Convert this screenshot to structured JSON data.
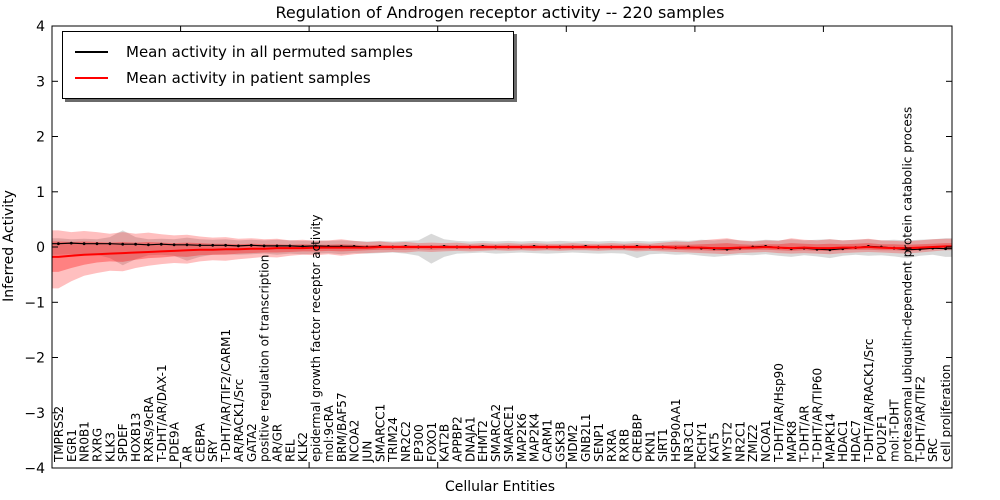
{
  "figure": {
    "title": "Regulation of Androgen receptor activity -- 220 samples",
    "xlabel": "Cellular Entities",
    "ylabel": "Inferred Activity"
  },
  "chart_data": {
    "type": "line",
    "title": "Regulation of Androgen receptor activity -- 220 samples",
    "xlabel": "Cellular Entities",
    "ylabel": "Inferred Activity",
    "ylim": [
      -4,
      4
    ],
    "yticks": [
      4,
      3,
      2,
      1,
      0,
      -1,
      -2,
      -3,
      -4
    ],
    "ytick_labels": [
      "4",
      "3",
      "2",
      "1",
      "0",
      "−1",
      "−2",
      "−3",
      "−4"
    ],
    "grid": false,
    "legend_position": "upper left",
    "categories": [
      "TMPRSS2",
      "EGR1",
      "NR0B1",
      "RXRG",
      "KLK3",
      "SPDEF",
      "HOXB13",
      "RXRs/9cRA",
      "T-DHT/AR/DAX-1",
      "PDE9A",
      "AR",
      "CEBPA",
      "SRY",
      "T-DHT/AR/TIF2/CARM1",
      "AR/RACK1/Src",
      "GATA2",
      "positive regulation of transcription",
      "AR/GR",
      "REL",
      "KLK2",
      "epidermal growth factor receptor activity",
      "mol:9cRA",
      "BRM/BAF57",
      "NCOA2",
      "JUN",
      "SMARCC1",
      "TRIM24",
      "NR2C2",
      "EP300",
      "FOXO1",
      "KAT2B",
      "APPBP2",
      "DNAJA1",
      "EHMT2",
      "SMARCA2",
      "SMARCE1",
      "MAP2K6",
      "MAP2K4",
      "CARM1",
      "GSK3B",
      "MDM2",
      "GNB2L1",
      "SENP1",
      "RXRA",
      "RXRB",
      "CREBBP",
      "PKN1",
      "SIRT1",
      "HSP90AA1",
      "NR3C1",
      "RCHY1",
      "KAT5",
      "MYST2",
      "NR2C1",
      "ZMIZ2",
      "NCOA1",
      "T-DHT/AR/Hsp90",
      "MAPK8",
      "T-DHT/AR",
      "T-DHT/AR/TIP60",
      "MAPK14",
      "HDAC1",
      "HDAC7",
      "T-DHT/AR/RACK1/Src",
      "POU2F1",
      "mol:T-DHT",
      "proteasomal ubiquitin-dependent protein catabolic process",
      "T-DHT/AR/TIF2",
      "SRC",
      "cell proliferation"
    ],
    "series": [
      {
        "name": "Mean activity in all permuted samples",
        "color": "#000000",
        "marker": "dot",
        "values": [
          0.06,
          0.07,
          0.06,
          0.06,
          0.06,
          0.05,
          0.05,
          0.04,
          0.05,
          0.04,
          0.04,
          0.03,
          0.03,
          0.03,
          0.02,
          0.03,
          0.02,
          0.02,
          0.02,
          0.01,
          0.02,
          0.01,
          0.01,
          0.01,
          0.0,
          0.01,
          0.0,
          0.01,
          0.0,
          0.0,
          0.01,
          0.0,
          0.0,
          0.01,
          0.0,
          0.0,
          0.0,
          0.01,
          0.0,
          0.0,
          0.0,
          0.01,
          0.0,
          0.0,
          0.0,
          0.01,
          0.0,
          0.0,
          -0.01,
          0.0,
          -0.02,
          -0.03,
          -0.04,
          -0.02,
          0.0,
          0.01,
          -0.01,
          -0.03,
          -0.02,
          -0.04,
          -0.05,
          -0.03,
          -0.01,
          0.01,
          0.0,
          -0.02,
          -0.05,
          -0.04,
          -0.02,
          -0.03
        ],
        "band": {
          "color": "rgba(130,130,130,0.30)",
          "upper": [
            0.16,
            0.14,
            0.15,
            0.14,
            0.18,
            0.3,
            0.18,
            0.14,
            0.15,
            0.14,
            0.17,
            0.14,
            0.13,
            0.14,
            0.12,
            0.13,
            0.12,
            0.13,
            0.12,
            0.11,
            0.12,
            0.11,
            0.12,
            0.11,
            0.1,
            0.11,
            0.1,
            0.11,
            0.12,
            0.24,
            0.14,
            0.11,
            0.1,
            0.11,
            0.1,
            0.11,
            0.1,
            0.11,
            0.1,
            0.11,
            0.1,
            0.11,
            0.1,
            0.11,
            0.1,
            0.11,
            0.1,
            0.11,
            0.12,
            0.11,
            0.13,
            0.12,
            0.14,
            0.12,
            0.11,
            0.13,
            0.12,
            0.14,
            0.12,
            0.13,
            0.14,
            0.12,
            0.13,
            0.14,
            0.12,
            0.13,
            0.12,
            0.13,
            0.14,
            0.16
          ],
          "lower": [
            -0.14,
            -0.13,
            -0.15,
            -0.14,
            -0.2,
            -0.33,
            -0.22,
            -0.15,
            -0.14,
            -0.16,
            -0.25,
            -0.18,
            -0.14,
            -0.13,
            -0.14,
            -0.13,
            -0.12,
            -0.14,
            -0.12,
            -0.13,
            -0.12,
            -0.11,
            -0.13,
            -0.11,
            -0.12,
            -0.11,
            -0.1,
            -0.12,
            -0.16,
            -0.3,
            -0.18,
            -0.12,
            -0.11,
            -0.1,
            -0.12,
            -0.11,
            -0.1,
            -0.11,
            -0.12,
            -0.11,
            -0.1,
            -0.11,
            -0.12,
            -0.11,
            -0.12,
            -0.2,
            -0.13,
            -0.12,
            -0.14,
            -0.13,
            -0.16,
            -0.18,
            -0.16,
            -0.14,
            -0.15,
            -0.13,
            -0.16,
            -0.18,
            -0.15,
            -0.17,
            -0.2,
            -0.16,
            -0.14,
            -0.16,
            -0.15,
            -0.17,
            -0.2,
            -0.16,
            -0.14,
            -0.18
          ]
        }
      },
      {
        "name": "Mean activity in patient samples",
        "color": "#ff0000",
        "marker": "none",
        "values": [
          -0.18,
          -0.16,
          -0.14,
          -0.13,
          -0.12,
          -0.11,
          -0.1,
          -0.09,
          -0.08,
          -0.07,
          -0.06,
          -0.05,
          -0.05,
          -0.04,
          -0.04,
          -0.03,
          -0.03,
          -0.02,
          -0.02,
          -0.02,
          -0.01,
          -0.01,
          -0.01,
          -0.01,
          -0.01,
          0,
          0,
          0,
          0,
          0,
          0,
          0,
          0,
          0,
          0,
          0,
          0,
          0,
          0,
          0,
          0,
          0,
          0,
          0,
          0,
          0,
          0,
          0,
          -0.01,
          -0.01,
          -0.01,
          -0.02,
          -0.02,
          -0.01,
          -0.01,
          0,
          -0.01,
          -0.02,
          -0.01,
          -0.02,
          -0.02,
          -0.01,
          -0.01,
          0,
          -0.01,
          -0.02,
          -0.02,
          -0.01,
          0,
          0.01
        ],
        "band_outer": {
          "color": "rgba(255,0,0,0.25)",
          "upper": [
            0.3,
            0.27,
            0.29,
            0.27,
            0.24,
            0.27,
            0.24,
            0.26,
            0.23,
            0.21,
            0.22,
            0.19,
            0.17,
            0.18,
            0.15,
            0.16,
            0.14,
            0.15,
            0.12,
            0.13,
            0.11,
            0.12,
            0.14,
            0.11,
            0.09,
            0.1,
            0.08,
            0.09,
            0.07,
            0.08,
            0.07,
            0.08,
            0.06,
            0.07,
            0.06,
            0.07,
            0.06,
            0.07,
            0.06,
            0.06,
            0.07,
            0.06,
            0.06,
            0.07,
            0.06,
            0.07,
            0.06,
            0.08,
            0.1,
            0.09,
            0.12,
            0.14,
            0.16,
            0.12,
            0.1,
            0.12,
            0.11,
            0.16,
            0.13,
            0.12,
            0.14,
            0.12,
            0.13,
            0.15,
            0.12,
            0.11,
            0.1,
            0.12,
            0.14,
            0.15
          ],
          "lower": [
            -0.75,
            -0.62,
            -0.52,
            -0.47,
            -0.43,
            -0.44,
            -0.38,
            -0.34,
            -0.31,
            -0.29,
            -0.3,
            -0.26,
            -0.24,
            -0.25,
            -0.22,
            -0.2,
            -0.18,
            -0.19,
            -0.16,
            -0.14,
            -0.15,
            -0.13,
            -0.16,
            -0.13,
            -0.11,
            -0.1,
            -0.09,
            -0.1,
            -0.08,
            -0.09,
            -0.08,
            -0.07,
            -0.08,
            -0.07,
            -0.06,
            -0.07,
            -0.06,
            -0.07,
            -0.06,
            -0.07,
            -0.06,
            -0.06,
            -0.07,
            -0.06,
            -0.06,
            -0.08,
            -0.07,
            -0.08,
            -0.09,
            -0.1,
            -0.11,
            -0.12,
            -0.13,
            -0.11,
            -0.1,
            -0.09,
            -0.11,
            -0.12,
            -0.11,
            -0.12,
            -0.13,
            -0.11,
            -0.1,
            -0.09,
            -0.1,
            -0.11,
            -0.12,
            -0.1,
            -0.08,
            -0.06
          ]
        },
        "band_inner": {
          "color": "rgba(255,0,0,0.32)",
          "upper": [
            0.1,
            0.09,
            0.1,
            0.09,
            0.08,
            0.09,
            0.08,
            0.09,
            0.08,
            0.07,
            0.08,
            0.07,
            0.06,
            0.06,
            0.05,
            0.06,
            0.05,
            0.05,
            0.04,
            0.05,
            0.04,
            0.04,
            0.05,
            0.04,
            0.03,
            0.04,
            0.03,
            0.03,
            0.03,
            0.03,
            0.03,
            0.03,
            0.03,
            0.03,
            0.03,
            0.03,
            0.03,
            0.03,
            0.03,
            0.03,
            0.03,
            0.03,
            0.03,
            0.03,
            0.03,
            0.03,
            0.03,
            0.03,
            0.04,
            0.04,
            0.05,
            0.06,
            0.07,
            0.05,
            0.04,
            0.05,
            0.05,
            0.07,
            0.06,
            0.05,
            0.06,
            0.05,
            0.06,
            0.07,
            0.05,
            0.05,
            0.04,
            0.05,
            0.06,
            0.07
          ],
          "lower": [
            -0.45,
            -0.38,
            -0.32,
            -0.28,
            -0.26,
            -0.27,
            -0.23,
            -0.2,
            -0.19,
            -0.17,
            -0.18,
            -0.15,
            -0.14,
            -0.14,
            -0.12,
            -0.11,
            -0.1,
            -0.1,
            -0.09,
            -0.08,
            -0.08,
            -0.07,
            -0.08,
            -0.07,
            -0.06,
            -0.05,
            -0.05,
            -0.05,
            -0.04,
            -0.05,
            -0.04,
            -0.04,
            -0.04,
            -0.04,
            -0.04,
            -0.04,
            -0.04,
            -0.04,
            -0.04,
            -0.04,
            -0.04,
            -0.04,
            -0.04,
            -0.04,
            -0.04,
            -0.05,
            -0.04,
            -0.05,
            -0.05,
            -0.06,
            -0.06,
            -0.07,
            -0.07,
            -0.06,
            -0.05,
            -0.05,
            -0.06,
            -0.07,
            -0.06,
            -0.07,
            -0.07,
            -0.06,
            -0.05,
            -0.05,
            -0.06,
            -0.06,
            -0.07,
            -0.06,
            -0.04,
            -0.03
          ]
        }
      }
    ]
  }
}
